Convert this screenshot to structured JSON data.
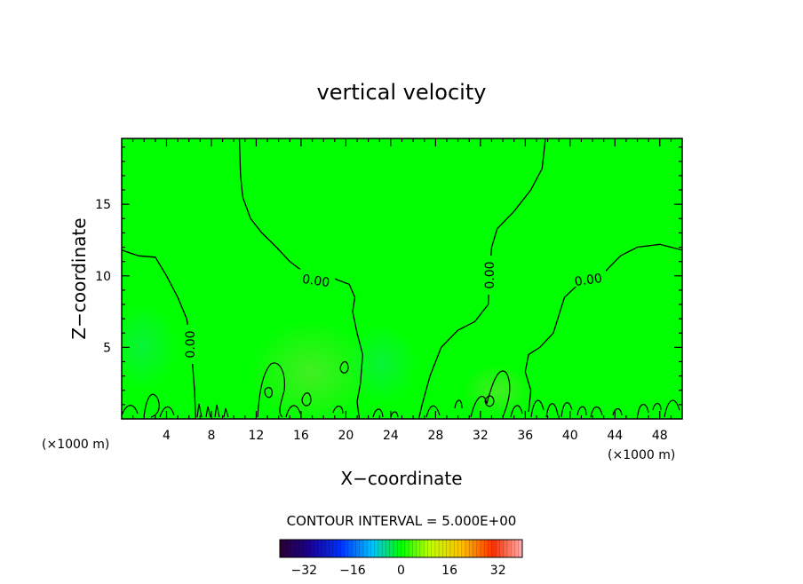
{
  "chart_data": {
    "type": "heatmap",
    "title": "vertical velocity",
    "xlabel": "X−coordinate",
    "ylabel": "Z−coordinate",
    "x_unit_left": "(×1000 m)",
    "x_unit_right": "(×1000 m)",
    "xlim": [
      0,
      50
    ],
    "ylim": [
      0,
      19.6
    ],
    "xticks": [
      4,
      8,
      12,
      16,
      20,
      24,
      28,
      32,
      36,
      40,
      44,
      48
    ],
    "yticks": [
      5,
      10,
      15
    ],
    "grid": false,
    "field_color": "#00ff00",
    "contour_interval_text": "CONTOUR INTERVAL = 5.000E+00",
    "contour_labels": [
      "0.00",
      "0.00",
      "0.00",
      "0.00"
    ],
    "colorbar": {
      "range": [
        -40,
        40
      ],
      "ticks": [
        "−32",
        "−16",
        "0",
        "16",
        "32"
      ],
      "tick_values": [
        -32,
        -16,
        0,
        16,
        32
      ]
    },
    "zero_contours": [
      [
        [
          10.5,
          19.6
        ],
        [
          10.6,
          17
        ],
        [
          10.8,
          15.5
        ],
        [
          11.5,
          14
        ],
        [
          12.5,
          13
        ],
        [
          13.8,
          12
        ],
        [
          15,
          11
        ],
        [
          16,
          10.4
        ],
        [
          17,
          10
        ],
        [
          19,
          9.8
        ],
        [
          20.3,
          9.4
        ],
        [
          20.8,
          8.5
        ],
        [
          20.6,
          7.5
        ],
        [
          21,
          6
        ],
        [
          21.5,
          4.5
        ],
        [
          21.3,
          2.5
        ],
        [
          21,
          1.2
        ],
        [
          21.2,
          0
        ]
      ],
      [
        [
          0,
          11.8
        ],
        [
          1.5,
          11.4
        ],
        [
          3,
          11.3
        ],
        [
          4,
          10
        ],
        [
          5,
          8.5
        ],
        [
          5.8,
          7
        ],
        [
          6.1,
          5.5
        ],
        [
          6.3,
          4
        ],
        [
          6.5,
          2
        ],
        [
          6.6,
          0
        ]
      ],
      [
        [
          37.8,
          19.6
        ],
        [
          37.5,
          17.5
        ],
        [
          36.5,
          16
        ],
        [
          35,
          14.5
        ],
        [
          33.5,
          13.3
        ],
        [
          33,
          12
        ],
        [
          32.8,
          10
        ],
        [
          32.7,
          8
        ],
        [
          31.5,
          6.8
        ],
        [
          30,
          6.2
        ],
        [
          28.5,
          5
        ],
        [
          27.5,
          3
        ],
        [
          26.8,
          1
        ],
        [
          26.5,
          0
        ]
      ],
      [
        [
          50,
          11.8
        ],
        [
          48,
          12.2
        ],
        [
          46,
          12
        ],
        [
          44.5,
          11.4
        ],
        [
          43,
          10.2
        ],
        [
          41,
          9.6
        ],
        [
          39.5,
          8.5
        ],
        [
          38.5,
          6
        ],
        [
          37.3,
          5
        ],
        [
          36.3,
          4.5
        ],
        [
          36,
          3.3
        ],
        [
          36.5,
          2
        ],
        [
          36.3,
          0.5
        ]
      ]
    ]
  }
}
